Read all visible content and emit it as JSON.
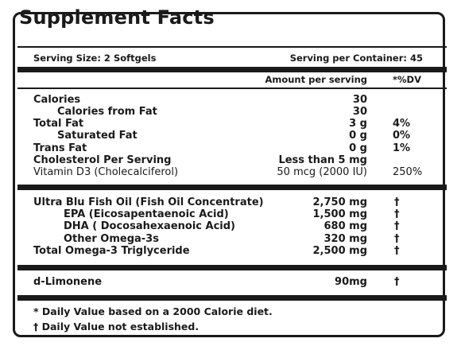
{
  "title": "Supplement Facts",
  "serving_size": "Serving Size: 2 Softgels",
  "servings_per_container": "Serving per Container: 45",
  "headers": {
    "amount": "Amount per serving",
    "dv": "*%DV"
  },
  "nutrients": [
    {
      "name": "Calories",
      "amount": "30",
      "dv": "",
      "indent": false,
      "bold": true
    },
    {
      "name": "Calories from Fat",
      "amount": "30",
      "dv": "",
      "indent": true,
      "bold": true
    },
    {
      "name": "Total Fat",
      "amount": "3 g",
      "dv": "4%",
      "indent": false,
      "bold": true
    },
    {
      "name": "Saturated Fat",
      "amount": "0 g",
      "dv": "0%",
      "indent": true,
      "bold": true
    },
    {
      "name": "Trans Fat",
      "amount": "0 g",
      "dv": "1%",
      "indent": false,
      "bold": true
    },
    {
      "name": "Cholesterol Per Serving",
      "amount": "Less than 5 mg",
      "dv": "",
      "indent": false,
      "bold": true
    },
    {
      "name": "Vitamin D3 (Cholecalciferol)",
      "amount": "50 mcg (2000 IU)",
      "dv": "250%",
      "indent": false,
      "bold": false
    }
  ],
  "oils": [
    {
      "name": "Ultra Blu Fish Oil (Fish Oil Concentrate)",
      "amount": "2,750 mg",
      "dv": "†",
      "indent": false
    },
    {
      "name": "EPA (Eicosapentaenoic Acid)",
      "amount": "1,500 mg",
      "dv": "†",
      "indent": true
    },
    {
      "name": "DHA ( Docosahexaenoic Acid)",
      "amount": "680 mg",
      "dv": "†",
      "indent": true
    },
    {
      "name": "Other Omega-3s",
      "amount": "320 mg",
      "dv": "†",
      "indent": true
    },
    {
      "name": "Total Omega-3 Triglyceride",
      "amount": "2,500 mg",
      "dv": "†",
      "indent": false
    }
  ],
  "extra": {
    "name": "d-Limonene",
    "amount": "90mg",
    "dv": "†"
  },
  "footnotes": [
    "* Daily Value based on a 2000 Calorie diet.",
    "† Daily Value not established."
  ]
}
